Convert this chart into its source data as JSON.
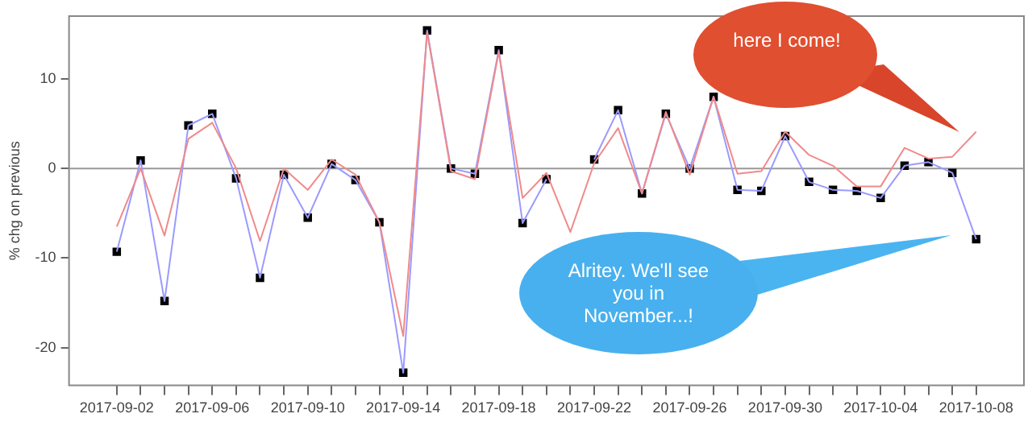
{
  "chart_data": {
    "type": "line",
    "ylabel": "% chg on previous",
    "x": [
      "2017-09-02",
      "2017-09-03",
      "2017-09-04",
      "2017-09-05",
      "2017-09-06",
      "2017-09-07",
      "2017-09-08",
      "2017-09-09",
      "2017-09-10",
      "2017-09-11",
      "2017-09-12",
      "2017-09-13",
      "2017-09-14",
      "2017-09-15",
      "2017-09-16",
      "2017-09-17",
      "2017-09-18",
      "2017-09-19",
      "2017-09-20",
      "2017-09-21",
      "2017-09-22",
      "2017-09-23",
      "2017-09-24",
      "2017-09-25",
      "2017-09-26",
      "2017-09-27",
      "2017-09-28",
      "2017-09-29",
      "2017-09-30",
      "2017-10-01",
      "2017-10-02",
      "2017-10-03",
      "2017-10-04",
      "2017-10-05",
      "2017-10-06",
      "2017-10-07",
      "2017-10-08"
    ],
    "series": [
      {
        "color": "#f08a8a",
        "values": [
          -6.5,
          0,
          -7.5,
          3.3,
          5.1,
          0,
          -8.1,
          0,
          -2.4,
          1.0,
          -0.7,
          -6.0,
          -18.7,
          15.2,
          -0.3,
          -1.2,
          13.0,
          -3.3,
          -0.5,
          -7.1,
          0.6,
          4.5,
          -2.8,
          6.3,
          -0.7,
          8.0,
          -0.6,
          -0.3,
          4.1,
          1.5,
          0.3,
          -2.0,
          -2.0,
          2.3,
          1.1,
          1.3,
          4.1
        ]
      },
      {
        "color": "#9a9aff",
        "values": [
          -9.3,
          0.9,
          -14.8,
          4.8,
          6.1,
          -1.1,
          -12.2,
          -0.7,
          -5.5,
          0.5,
          -1.3,
          -6.0,
          -22.8,
          15.4,
          0,
          -0.6,
          13.2,
          -6.1,
          -1.2,
          null,
          1.0,
          6.5,
          -2.8,
          6.1,
          0,
          8.0,
          -2.4,
          -2.5,
          3.6,
          -1.5,
          -2.4,
          -2.5,
          -3.3,
          0.3,
          0.7,
          -0.5,
          -7.9
        ]
      },
      {
        "type": "scatter",
        "color": "#000000",
        "marker": "square",
        "values": [
          -9.3,
          0.9,
          -14.8,
          4.8,
          6.1,
          -1.1,
          -12.2,
          -0.7,
          -5.5,
          0.5,
          -1.3,
          -6.0,
          -22.8,
          15.4,
          0,
          -0.6,
          13.2,
          -6.1,
          -1.2,
          null,
          1.0,
          6.5,
          -2.8,
          6.1,
          0,
          8.0,
          -2.4,
          -2.5,
          3.6,
          -1.5,
          -2.4,
          -2.5,
          -3.3,
          0.3,
          0.7,
          -0.5,
          -7.9
        ]
      }
    ],
    "xlim": [
      "2017-08-31",
      "2017-10-10"
    ],
    "xticks": [
      "2017-09-02",
      {
        "value": "2017-09-03",
        "label": null
      },
      {
        "value": "2017-09-04",
        "label": null
      },
      {
        "value": "2017-09-05",
        "label": null
      },
      "2017-09-06",
      {
        "value": "2017-09-07",
        "label": null
      },
      {
        "value": "2017-09-08",
        "label": null
      },
      {
        "value": "2017-09-09",
        "label": null
      },
      "2017-09-10",
      {
        "value": "2017-09-11",
        "label": null
      },
      {
        "value": "2017-09-12",
        "label": null
      },
      {
        "value": "2017-09-13",
        "label": null
      },
      "2017-09-14",
      {
        "value": "2017-09-15",
        "label": null
      },
      {
        "value": "2017-09-16",
        "label": null
      },
      {
        "value": "2017-09-17",
        "label": null
      },
      "2017-09-18",
      {
        "value": "2017-09-19",
        "label": null
      },
      {
        "value": "2017-09-20",
        "label": null
      },
      {
        "value": "2017-09-21",
        "label": null
      },
      "2017-09-22",
      {
        "value": "2017-09-23",
        "label": null
      },
      {
        "value": "2017-09-24",
        "label": null
      },
      {
        "value": "2017-09-25",
        "label": null
      },
      "2017-09-26",
      {
        "value": "2017-09-27",
        "label": null
      },
      {
        "value": "2017-09-28",
        "label": null
      },
      {
        "value": "2017-09-29",
        "label": null
      },
      "2017-09-30",
      {
        "value": "2017-10-01",
        "label": null
      },
      {
        "value": "2017-10-02",
        "label": null
      },
      {
        "value": "2017-10-03",
        "label": null
      },
      "2017-10-04",
      {
        "value": "2017-10-05",
        "label": null
      },
      {
        "value": "2017-10-06",
        "label": null
      },
      {
        "value": "2017-10-07",
        "label": null
      },
      "2017-10-08"
    ],
    "ylim": [
      -24.2,
      17
    ],
    "yticks": [
      -20,
      -10,
      0,
      10
    ],
    "ref_lines": [
      {
        "axis": "y",
        "value": 0,
        "color": "#999999"
      }
    ],
    "grid": false,
    "legend": false,
    "annotations": [
      "here I come!",
      "Alritey. We'll see you in November...!"
    ]
  }
}
